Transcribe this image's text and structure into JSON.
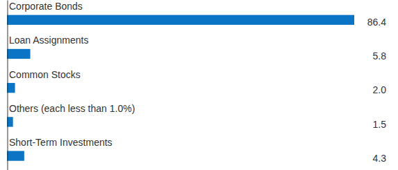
{
  "chart_data": {
    "type": "bar",
    "orientation": "horizontal",
    "categories": [
      "Corporate Bonds",
      "Loan Assignments",
      "Common Stocks",
      "Others (each less than 1.0%)",
      "Short-Term Investments"
    ],
    "values": [
      86.4,
      5.8,
      2.0,
      1.5,
      4.3
    ],
    "value_labels": [
      "86.4",
      "5.8",
      "2.0",
      "1.5",
      "4.3"
    ],
    "color": "#0b74c4",
    "xlim": [
      0,
      86.4
    ],
    "data_labels": true,
    "tick_labels": false
  }
}
